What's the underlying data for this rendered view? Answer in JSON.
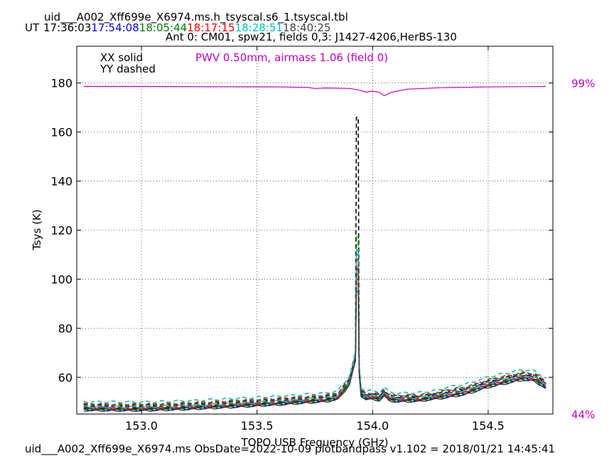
{
  "header": {
    "title": "uid___A002_Xff699e_X6974.ms.h_tsyscal.s6_1.tsyscal.tbl",
    "ut_label": "UT",
    "times": [
      {
        "text": "17:36:03",
        "color": "#000000"
      },
      {
        "text": "17:54:08",
        "color": "#0000ff"
      },
      {
        "text": "18:05:44",
        "color": "#008000"
      },
      {
        "text": "18:17:15",
        "color": "#ff0000"
      },
      {
        "text": "18:28:51",
        "color": "#00bfbf"
      },
      {
        "text": "18:40:25",
        "color": "#404040"
      }
    ],
    "subtitle": "Ant 0: CM01,  spw21,  fields 0,3: J1427-4206,HerBS-130"
  },
  "legend": {
    "solid": "XX solid",
    "dashed": "YY dashed",
    "pwv": "PWV 0.50mm, airmass 1.06 (field 0)"
  },
  "footer": "uid___A002_Xff699e_X6974.ms  ObsDate=2022-10-09   plotbandpass v1.102 = 2018/01/21 14:45:41",
  "chart_data": {
    "type": "line",
    "xlabel": "TOPO USB Frequency (GHz)",
    "ylabel": "Tsys (K)",
    "xlim": [
      152.72,
      154.78
    ],
    "ylim": [
      45,
      195
    ],
    "xticks": [
      153.0,
      153.5,
      154.0,
      154.5
    ],
    "xtick_labels": [
      "153.0",
      "153.5",
      "154.0",
      "154.5"
    ],
    "yticks": [
      60,
      80,
      100,
      120,
      140,
      160,
      180
    ],
    "grid": true,
    "right_axis_labels": [
      {
        "text": "99%",
        "y": 180
      },
      {
        "text": "44%",
        "y": 45
      }
    ],
    "colors": {
      "pwv": "#bf00bf",
      "right_labels": "#bf00bf"
    },
    "pwv_transmission_curve": {
      "x": [
        152.75,
        153.0,
        153.3,
        153.6,
        153.72,
        153.75,
        153.8,
        153.9,
        153.94,
        153.97,
        154.0,
        154.03,
        154.05,
        154.08,
        154.15,
        154.3,
        154.5,
        154.75
      ],
      "y": [
        178.6,
        178.6,
        178.5,
        178.4,
        178.2,
        177.8,
        178.0,
        177.8,
        177.2,
        176.3,
        176.7,
        176.2,
        174.8,
        176.2,
        177.5,
        178.1,
        178.4,
        178.6
      ]
    },
    "series": [
      {
        "color": "#000000",
        "style": "solid",
        "offset": 0.0,
        "peak": 104
      },
      {
        "color": "#000000",
        "style": "dashed",
        "offset": 1.5,
        "peak": 166
      },
      {
        "color": "#0000ff",
        "style": "solid",
        "offset": -0.3,
        "peak": 100
      },
      {
        "color": "#0000ff",
        "style": "dashed",
        "offset": 1.2,
        "peak": 110
      },
      {
        "color": "#008000",
        "style": "solid",
        "offset": 0.2,
        "peak": 102
      },
      {
        "color": "#008000",
        "style": "dashed",
        "offset": 1.8,
        "peak": 118
      },
      {
        "color": "#ff0000",
        "style": "solid",
        "offset": 0.5,
        "peak": 98
      },
      {
        "color": "#ff0000",
        "style": "dashed",
        "offset": 2.0,
        "peak": 108
      },
      {
        "color": "#00bfbf",
        "style": "solid",
        "offset": 1.0,
        "peak": 96
      },
      {
        "color": "#00bfbf",
        "style": "dashed",
        "offset": 3.0,
        "peak": 112
      },
      {
        "color": "#404040",
        "style": "solid",
        "offset": -0.5,
        "peak": 95
      },
      {
        "color": "#404040",
        "style": "dashed",
        "offset": 1.0,
        "peak": 105
      }
    ],
    "base_tsys_profile": {
      "x": [
        152.75,
        152.9,
        153.0,
        153.2,
        153.4,
        153.6,
        153.8,
        153.85,
        153.88,
        153.9,
        153.92,
        153.935,
        153.95,
        153.97,
        154.0,
        154.03,
        154.05,
        154.07,
        154.1,
        154.2,
        154.3,
        154.4,
        154.5,
        154.6,
        154.65,
        154.7,
        154.75
      ],
      "y": [
        47.0,
        46.9,
        46.9,
        47.4,
        48.3,
        49.3,
        50.6,
        51.5,
        55.0,
        57.5,
        65.0,
        70.0,
        53.0,
        51.5,
        51.5,
        51.0,
        53.0,
        51.0,
        50.5,
        50.7,
        52.0,
        53.5,
        56.5,
        58.5,
        59.5,
        59.0,
        56.0
      ]
    }
  }
}
